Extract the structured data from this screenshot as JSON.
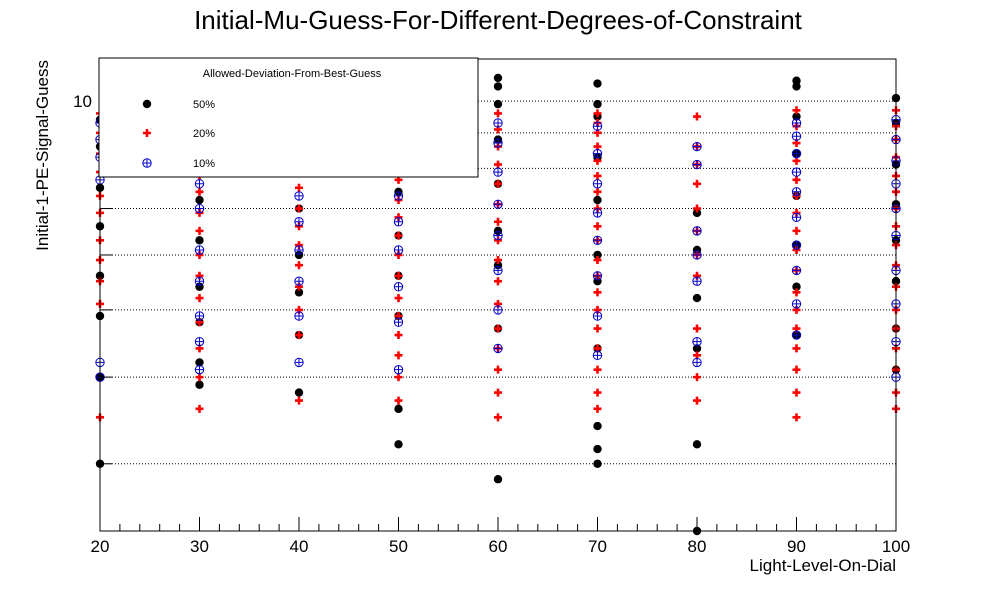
{
  "chart_data": {
    "type": "scatter",
    "title": "Initial-Mu-Guess-For-Different-Degrees-of-Constraint",
    "xlabel": "Light-Level-On-Dial",
    "ylabel": "Initial-1-PE-Signal-Guess",
    "xlim": [
      20,
      100
    ],
    "ylim": [
      2.4,
      11.5
    ],
    "yscale": "log",
    "grid": "horizontal-dotted",
    "x_ticks": [
      20,
      30,
      40,
      50,
      60,
      70,
      80,
      90,
      100
    ],
    "y_ticks": [
      10
    ],
    "y_gridlines": [
      3,
      4,
      5,
      6,
      7,
      8,
      9,
      10
    ],
    "legend": {
      "title": "Allowed-Deviation-From-Best-Guess",
      "position": "top-left",
      "entries": [
        "50%",
        "20%",
        "10%"
      ]
    },
    "series": [
      {
        "name": "50%",
        "marker": "filled-circle",
        "color": "#000000",
        "points": [
          [
            20,
            9.4
          ],
          [
            20,
            8.6
          ],
          [
            20,
            7.5
          ],
          [
            20,
            6.6
          ],
          [
            20,
            5.6
          ],
          [
            20,
            4.9
          ],
          [
            20,
            4.0
          ],
          [
            20,
            3.0
          ],
          [
            30,
            8.9
          ],
          [
            30,
            8.0
          ],
          [
            30,
            7.2
          ],
          [
            30,
            6.3
          ],
          [
            30,
            5.4
          ],
          [
            30,
            4.8
          ],
          [
            30,
            4.2
          ],
          [
            30,
            3.9
          ],
          [
            40,
            11.2
          ],
          [
            40,
            9.1
          ],
          [
            40,
            8.2
          ],
          [
            40,
            7.0
          ],
          [
            40,
            6.0
          ],
          [
            40,
            5.3
          ],
          [
            40,
            4.6
          ],
          [
            40,
            3.8
          ],
          [
            50,
            11.3
          ],
          [
            50,
            9.6
          ],
          [
            50,
            8.5
          ],
          [
            50,
            7.4
          ],
          [
            50,
            6.4
          ],
          [
            50,
            5.6
          ],
          [
            50,
            4.9
          ],
          [
            50,
            3.6
          ],
          [
            50,
            3.2
          ],
          [
            60,
            10.8
          ],
          [
            60,
            10.5
          ],
          [
            60,
            9.9
          ],
          [
            60,
            8.8
          ],
          [
            60,
            7.6
          ],
          [
            60,
            6.5
          ],
          [
            60,
            5.8
          ],
          [
            60,
            4.7
          ],
          [
            60,
            2.85
          ],
          [
            70,
            10.6
          ],
          [
            70,
            9.9
          ],
          [
            70,
            9.5
          ],
          [
            70,
            8.3
          ],
          [
            70,
            7.2
          ],
          [
            70,
            6.0
          ],
          [
            70,
            5.5
          ],
          [
            70,
            4.4
          ],
          [
            70,
            3.4
          ],
          [
            70,
            3.15
          ],
          [
            70,
            3.0
          ],
          [
            80,
            6.9
          ],
          [
            80,
            6.1
          ],
          [
            80,
            5.2
          ],
          [
            80,
            4.4
          ],
          [
            80,
            3.2
          ],
          [
            80,
            2.4
          ],
          [
            90,
            10.7
          ],
          [
            90,
            10.5
          ],
          [
            90,
            9.5
          ],
          [
            90,
            8.4
          ],
          [
            90,
            7.3
          ],
          [
            90,
            6.2
          ],
          [
            90,
            5.4
          ],
          [
            90,
            4.6
          ],
          [
            100,
            10.1
          ],
          [
            100,
            9.3
          ],
          [
            100,
            8.1
          ],
          [
            100,
            7.1
          ],
          [
            100,
            6.3
          ],
          [
            100,
            5.5
          ],
          [
            100,
            4.7
          ],
          [
            100,
            4.1
          ]
        ]
      },
      {
        "name": "20%",
        "marker": "cross",
        "color": "#ff0000",
        "points": [
          [
            20,
            9.6
          ],
          [
            20,
            9.0
          ],
          [
            20,
            8.4
          ],
          [
            20,
            7.9
          ],
          [
            20,
            7.3
          ],
          [
            20,
            6.9
          ],
          [
            20,
            6.3
          ],
          [
            20,
            5.9
          ],
          [
            20,
            5.5
          ],
          [
            20,
            5.1
          ],
          [
            20,
            3.5
          ],
          [
            30,
            9.2
          ],
          [
            30,
            8.8
          ],
          [
            30,
            8.3
          ],
          [
            30,
            7.8
          ],
          [
            30,
            7.4
          ],
          [
            30,
            6.9
          ],
          [
            30,
            6.5
          ],
          [
            30,
            6.0
          ],
          [
            30,
            5.6
          ],
          [
            30,
            5.2
          ],
          [
            30,
            4.8
          ],
          [
            30,
            4.4
          ],
          [
            30,
            4.0
          ],
          [
            30,
            3.6
          ],
          [
            40,
            9.8
          ],
          [
            40,
            9.2
          ],
          [
            40,
            8.6
          ],
          [
            40,
            8.0
          ],
          [
            40,
            7.5
          ],
          [
            40,
            7.0
          ],
          [
            40,
            6.6
          ],
          [
            40,
            6.2
          ],
          [
            40,
            5.8
          ],
          [
            40,
            5.4
          ],
          [
            40,
            5.0
          ],
          [
            40,
            4.6
          ],
          [
            40,
            3.7
          ],
          [
            50,
            9.7
          ],
          [
            50,
            9.1
          ],
          [
            50,
            8.7
          ],
          [
            50,
            8.2
          ],
          [
            50,
            7.7
          ],
          [
            50,
            7.2
          ],
          [
            50,
            6.8
          ],
          [
            50,
            6.4
          ],
          [
            50,
            6.0
          ],
          [
            50,
            5.6
          ],
          [
            50,
            5.2
          ],
          [
            50,
            4.9
          ],
          [
            50,
            4.6
          ],
          [
            50,
            4.3
          ],
          [
            50,
            4.0
          ],
          [
            50,
            3.7
          ],
          [
            60,
            9.6
          ],
          [
            60,
            9.1
          ],
          [
            60,
            8.6
          ],
          [
            60,
            8.1
          ],
          [
            60,
            7.6
          ],
          [
            60,
            7.1
          ],
          [
            60,
            6.7
          ],
          [
            60,
            6.3
          ],
          [
            60,
            5.9
          ],
          [
            60,
            5.5
          ],
          [
            60,
            5.1
          ],
          [
            60,
            4.7
          ],
          [
            60,
            4.4
          ],
          [
            60,
            4.1
          ],
          [
            60,
            3.8
          ],
          [
            60,
            3.5
          ],
          [
            70,
            9.6
          ],
          [
            70,
            9.3
          ],
          [
            70,
            9.0
          ],
          [
            70,
            8.6
          ],
          [
            70,
            8.2
          ],
          [
            70,
            7.8
          ],
          [
            70,
            7.4
          ],
          [
            70,
            7.0
          ],
          [
            70,
            6.6
          ],
          [
            70,
            6.3
          ],
          [
            70,
            5.9
          ],
          [
            70,
            5.6
          ],
          [
            70,
            5.3
          ],
          [
            70,
            5.0
          ],
          [
            70,
            4.7
          ],
          [
            70,
            4.4
          ],
          [
            70,
            4.1
          ],
          [
            70,
            3.8
          ],
          [
            70,
            3.6
          ],
          [
            80,
            9.5
          ],
          [
            80,
            8.6
          ],
          [
            80,
            8.1
          ],
          [
            80,
            7.6
          ],
          [
            80,
            7.0
          ],
          [
            80,
            6.5
          ],
          [
            80,
            6.0
          ],
          [
            80,
            5.6
          ],
          [
            80,
            4.7
          ],
          [
            80,
            4.3
          ],
          [
            80,
            4.0
          ],
          [
            80,
            3.7
          ],
          [
            90,
            9.7
          ],
          [
            90,
            9.2
          ],
          [
            90,
            8.7
          ],
          [
            90,
            8.2
          ],
          [
            90,
            7.7
          ],
          [
            90,
            7.3
          ],
          [
            90,
            6.9
          ],
          [
            90,
            6.5
          ],
          [
            90,
            6.1
          ],
          [
            90,
            5.7
          ],
          [
            90,
            5.3
          ],
          [
            90,
            5.0
          ],
          [
            90,
            4.7
          ],
          [
            90,
            4.4
          ],
          [
            90,
            4.1
          ],
          [
            90,
            3.8
          ],
          [
            90,
            3.5
          ],
          [
            100,
            9.7
          ],
          [
            100,
            9.2
          ],
          [
            100,
            8.8
          ],
          [
            100,
            8.3
          ],
          [
            100,
            7.8
          ],
          [
            100,
            7.4
          ],
          [
            100,
            7.0
          ],
          [
            100,
            6.6
          ],
          [
            100,
            6.2
          ],
          [
            100,
            5.8
          ],
          [
            100,
            5.4
          ],
          [
            100,
            5.0
          ],
          [
            100,
            4.7
          ],
          [
            100,
            4.4
          ],
          [
            100,
            4.1
          ],
          [
            100,
            3.8
          ],
          [
            100,
            3.6
          ]
        ]
      },
      {
        "name": "10%",
        "marker": "open-circle-cross",
        "color": "#0000cc",
        "points": [
          [
            20,
            9.3
          ],
          [
            20,
            8.8
          ],
          [
            20,
            8.3
          ],
          [
            20,
            7.7
          ],
          [
            20,
            4.2
          ],
          [
            20,
            4.0
          ],
          [
            30,
            9.0
          ],
          [
            30,
            8.4
          ],
          [
            30,
            7.6
          ],
          [
            30,
            7.0
          ],
          [
            30,
            6.1
          ],
          [
            30,
            5.5
          ],
          [
            30,
            4.9
          ],
          [
            30,
            4.5
          ],
          [
            30,
            4.1
          ],
          [
            40,
            9.4
          ],
          [
            40,
            8.7
          ],
          [
            40,
            7.9
          ],
          [
            40,
            7.3
          ],
          [
            40,
            6.7
          ],
          [
            40,
            6.1
          ],
          [
            40,
            5.5
          ],
          [
            40,
            4.9
          ],
          [
            40,
            4.2
          ],
          [
            50,
            9.5
          ],
          [
            50,
            8.8
          ],
          [
            50,
            8.0
          ],
          [
            50,
            7.3
          ],
          [
            50,
            6.7
          ],
          [
            50,
            6.1
          ],
          [
            50,
            5.4
          ],
          [
            50,
            4.8
          ],
          [
            50,
            4.1
          ],
          [
            60,
            9.3
          ],
          [
            60,
            8.7
          ],
          [
            60,
            7.9
          ],
          [
            60,
            7.1
          ],
          [
            60,
            6.4
          ],
          [
            60,
            5.7
          ],
          [
            60,
            5.0
          ],
          [
            60,
            4.4
          ],
          [
            70,
            9.2
          ],
          [
            70,
            8.4
          ],
          [
            70,
            7.6
          ],
          [
            70,
            6.9
          ],
          [
            70,
            6.3
          ],
          [
            70,
            5.6
          ],
          [
            70,
            4.9
          ],
          [
            70,
            4.3
          ],
          [
            80,
            8.6
          ],
          [
            80,
            8.1
          ],
          [
            80,
            6.5
          ],
          [
            80,
            6.0
          ],
          [
            80,
            5.5
          ],
          [
            80,
            4.5
          ],
          [
            80,
            4.2
          ],
          [
            90,
            9.3
          ],
          [
            90,
            8.9
          ],
          [
            90,
            8.4
          ],
          [
            90,
            7.9
          ],
          [
            90,
            7.4
          ],
          [
            90,
            6.8
          ],
          [
            90,
            6.2
          ],
          [
            90,
            5.7
          ],
          [
            90,
            5.1
          ],
          [
            90,
            4.6
          ],
          [
            100,
            9.4
          ],
          [
            100,
            8.8
          ],
          [
            100,
            8.2
          ],
          [
            100,
            7.6
          ],
          [
            100,
            7.0
          ],
          [
            100,
            6.4
          ],
          [
            100,
            5.7
          ],
          [
            100,
            5.1
          ],
          [
            100,
            4.5
          ],
          [
            100,
            4.0
          ]
        ]
      }
    ]
  }
}
